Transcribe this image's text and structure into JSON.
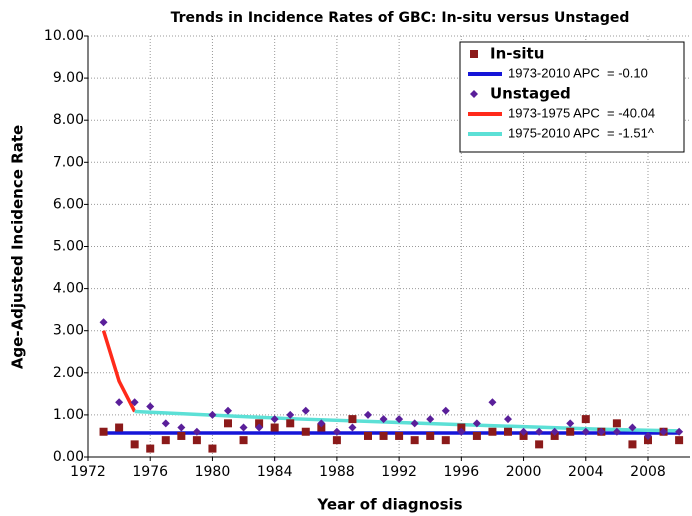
{
  "chart_data": {
    "type": "scatter",
    "title": "Trends in Incidence Rates of GBC: In-situ versus Unstaged",
    "x_label": "Year of diagnosis",
    "y_label": "Age-Adjusted Incidence Rate",
    "xlim": [
      1972,
      2010.7
    ],
    "ylim": [
      0,
      10
    ],
    "xticks": [
      1972,
      1976,
      1980,
      1984,
      1988,
      1992,
      1996,
      2000,
      2004,
      2008
    ],
    "yticks": [
      {
        "value": 0,
        "label": "0.00"
      },
      {
        "value": 1,
        "label": "1.00"
      },
      {
        "value": 2,
        "label": "2.00"
      },
      {
        "value": 3,
        "label": "3.00"
      },
      {
        "value": 4,
        "label": "4.00"
      },
      {
        "value": 5,
        "label": "5.00"
      },
      {
        "value": 6,
        "label": "6.00"
      },
      {
        "value": 7,
        "label": "7.00"
      },
      {
        "value": 8,
        "label": "8.00"
      },
      {
        "value": 9,
        "label": "9.00"
      },
      {
        "value": 10,
        "label": "10.00"
      }
    ],
    "grid": true,
    "legend": "upper right",
    "series": [
      {
        "name": "In-situ",
        "type": "scatter",
        "marker": "square",
        "color": "#8b1a1a",
        "x": [
          1973,
          1974,
          1975,
          1976,
          1977,
          1978,
          1979,
          1980,
          1981,
          1982,
          1983,
          1984,
          1985,
          1986,
          1987,
          1988,
          1989,
          1990,
          1991,
          1992,
          1993,
          1994,
          1995,
          1996,
          1997,
          1998,
          1999,
          2000,
          2001,
          2002,
          2003,
          2004,
          2005,
          2006,
          2007,
          2008,
          2009,
          2010
        ],
        "values": [
          0.6,
          0.7,
          0.3,
          0.2,
          0.4,
          0.5,
          0.4,
          0.2,
          0.8,
          0.4,
          0.8,
          0.7,
          0.8,
          0.6,
          0.7,
          0.4,
          0.9,
          0.5,
          0.5,
          0.5,
          0.4,
          0.5,
          0.4,
          0.7,
          0.5,
          0.6,
          0.6,
          0.5,
          0.3,
          0.5,
          0.6,
          0.9,
          0.6,
          0.8,
          0.3,
          0.4,
          0.6,
          0.4
        ]
      },
      {
        "name": "1973-2010 APC  = -0.10",
        "type": "line",
        "color": "#1515d8",
        "x": [
          1973,
          2010
        ],
        "values": [
          0.57,
          0.57
        ]
      },
      {
        "name": "Unstaged",
        "type": "scatter",
        "marker": "diamond",
        "color": "#5a1f9a",
        "x": [
          1973,
          1974,
          1975,
          1976,
          1977,
          1978,
          1979,
          1980,
          1981,
          1982,
          1983,
          1984,
          1985,
          1986,
          1987,
          1988,
          1989,
          1990,
          1991,
          1992,
          1993,
          1994,
          1995,
          1996,
          1997,
          1998,
          1999,
          2000,
          2001,
          2002,
          2003,
          2004,
          2005,
          2006,
          2007,
          2008,
          2009,
          2010
        ],
        "values": [
          3.2,
          1.3,
          1.3,
          1.2,
          0.8,
          0.7,
          0.6,
          1.0,
          1.1,
          0.7,
          0.7,
          0.9,
          1.0,
          1.1,
          0.8,
          0.6,
          0.7,
          1.0,
          0.9,
          0.9,
          0.8,
          0.9,
          1.1,
          0.6,
          0.8,
          1.3,
          0.9,
          0.6,
          0.6,
          0.6,
          0.8,
          0.6,
          0.6,
          0.6,
          0.7,
          0.5,
          0.6,
          0.6
        ]
      },
      {
        "name": "1973-1975 APC  = -40.04",
        "type": "line",
        "color": "#ff2a1a",
        "x": [
          1973,
          1974,
          1975
        ],
        "values": [
          3.0,
          1.8,
          1.08
        ]
      },
      {
        "name": "1975-2010 APC  = -1.51^",
        "type": "line",
        "color": "#5ce0d6",
        "x": [
          1975,
          1985,
          1995,
          2005,
          2010
        ],
        "values": [
          1.08,
          0.91,
          0.78,
          0.66,
          0.62
        ]
      }
    ]
  }
}
